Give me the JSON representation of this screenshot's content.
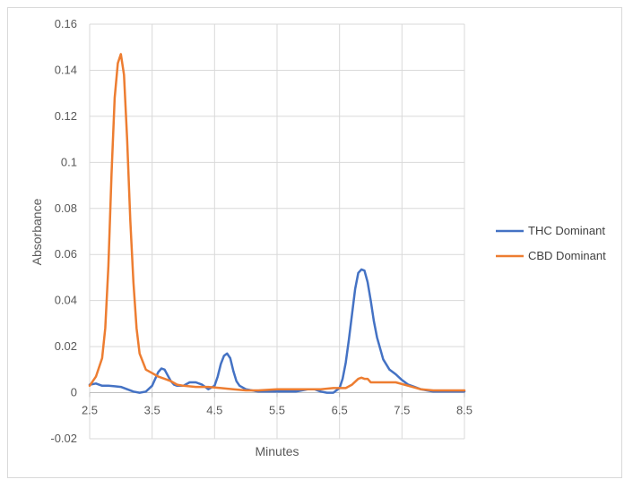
{
  "chart_data": {
    "type": "line",
    "title": "",
    "xlabel": "Minutes",
    "ylabel": "Absorbance",
    "xlim": [
      2.5,
      8.5
    ],
    "ylim": [
      -0.02,
      0.16
    ],
    "xticks": [
      2.5,
      3.5,
      4.5,
      5.5,
      6.5,
      7.5,
      8.5
    ],
    "xtick_labels": [
      "2.5",
      "3.5",
      "4.5",
      "5.5",
      "6.5",
      "7.5",
      "8.5"
    ],
    "yticks": [
      -0.02,
      0,
      0.02,
      0.04,
      0.06,
      0.08,
      0.1,
      0.12,
      0.14,
      0.16
    ],
    "ytick_labels": [
      "-0.02",
      "0",
      "0.02",
      "0.04",
      "0.06",
      "0.08",
      "0.1",
      "0.12",
      "0.14",
      "0.16"
    ],
    "grid": true,
    "legend_position": "right",
    "series": [
      {
        "name": "THC Dominant",
        "color": "#4472C4",
        "x": [
          2.5,
          2.6,
          2.7,
          2.8,
          2.9,
          3.0,
          3.1,
          3.2,
          3.3,
          3.4,
          3.5,
          3.55,
          3.6,
          3.65,
          3.7,
          3.75,
          3.8,
          3.85,
          3.9,
          4.0,
          4.1,
          4.2,
          4.3,
          4.4,
          4.5,
          4.55,
          4.6,
          4.65,
          4.7,
          4.75,
          4.8,
          4.85,
          4.9,
          5.0,
          5.2,
          5.5,
          5.8,
          6.0,
          6.1,
          6.2,
          6.3,
          6.4,
          6.5,
          6.55,
          6.6,
          6.65,
          6.7,
          6.75,
          6.8,
          6.85,
          6.9,
          6.95,
          7.0,
          7.05,
          7.1,
          7.2,
          7.3,
          7.4,
          7.5,
          7.6,
          7.7,
          7.8,
          7.9,
          8.0,
          8.2,
          8.5
        ],
        "values": [
          0.0035,
          0.004,
          0.003,
          0.003,
          0.0028,
          0.0025,
          0.0015,
          0.0005,
          0.0,
          0.0005,
          0.003,
          0.006,
          0.009,
          0.0105,
          0.01,
          0.0075,
          0.005,
          0.0035,
          0.003,
          0.003,
          0.0045,
          0.0045,
          0.0035,
          0.0015,
          0.003,
          0.007,
          0.0125,
          0.016,
          0.017,
          0.015,
          0.0095,
          0.005,
          0.003,
          0.0015,
          0.0005,
          0.0005,
          0.0005,
          0.0015,
          0.0015,
          0.0005,
          0.0,
          0.0,
          0.002,
          0.006,
          0.013,
          0.023,
          0.034,
          0.045,
          0.052,
          0.0535,
          0.053,
          0.048,
          0.04,
          0.031,
          0.024,
          0.0145,
          0.01,
          0.008,
          0.0055,
          0.0035,
          0.0025,
          0.0015,
          0.001,
          0.0005,
          0.0005,
          0.0005
        ]
      },
      {
        "name": "CBD Dominant",
        "color": "#ED7D31",
        "x": [
          2.5,
          2.6,
          2.7,
          2.75,
          2.8,
          2.85,
          2.9,
          2.95,
          3.0,
          3.05,
          3.1,
          3.15,
          3.2,
          3.25,
          3.3,
          3.4,
          3.5,
          3.6,
          3.7,
          3.8,
          3.9,
          4.0,
          4.2,
          4.4,
          4.6,
          4.8,
          5.0,
          5.2,
          5.5,
          5.8,
          6.0,
          6.2,
          6.4,
          6.6,
          6.7,
          6.8,
          6.85,
          6.9,
          6.95,
          7.0,
          7.1,
          7.2,
          7.4,
          7.6,
          7.8,
          8.0,
          8.2,
          8.5
        ],
        "values": [
          0.003,
          0.007,
          0.015,
          0.028,
          0.055,
          0.095,
          0.128,
          0.143,
          0.147,
          0.138,
          0.11,
          0.075,
          0.048,
          0.028,
          0.017,
          0.01,
          0.0085,
          0.007,
          0.006,
          0.005,
          0.0035,
          0.003,
          0.0025,
          0.0025,
          0.002,
          0.0015,
          0.001,
          0.001,
          0.0015,
          0.0015,
          0.0015,
          0.0015,
          0.002,
          0.002,
          0.0035,
          0.006,
          0.0065,
          0.006,
          0.006,
          0.0045,
          0.0045,
          0.0045,
          0.0045,
          0.003,
          0.0015,
          0.001,
          0.001,
          0.001
        ]
      }
    ]
  }
}
